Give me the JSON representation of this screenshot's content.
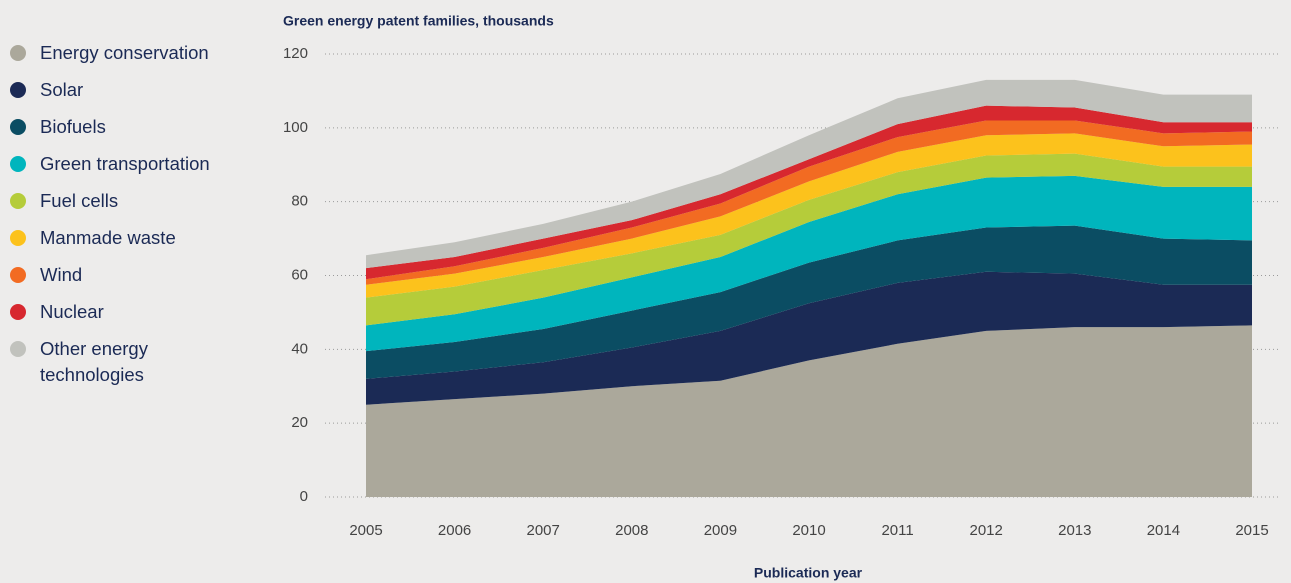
{
  "chart_data": {
    "type": "stacked-area",
    "title": "Green energy patent families, thousands",
    "x_label": "Publication year",
    "categories": [
      "2005",
      "2006",
      "2007",
      "2008",
      "2009",
      "2010",
      "2011",
      "2012",
      "2013",
      "2014",
      "2015"
    ],
    "ylim": [
      0,
      120
    ],
    "yticks": [
      0,
      20,
      40,
      60,
      80,
      100,
      120
    ],
    "grid": true,
    "series": [
      {
        "name": "Energy conservation",
        "color": "#aba89b",
        "values": [
          25,
          26.5,
          28,
          30,
          31.5,
          37,
          41.5,
          45,
          46,
          46,
          46.5
        ]
      },
      {
        "name": "Solar",
        "color": "#1b2a55",
        "values": [
          7,
          7.5,
          8.5,
          10.5,
          13.5,
          15.5,
          16.5,
          16,
          14.5,
          11.5,
          11
        ]
      },
      {
        "name": "Biofuels",
        "color": "#0b4d63",
        "values": [
          7.5,
          8,
          9,
          10,
          10.5,
          11,
          11.5,
          12,
          13,
          12.5,
          12
        ]
      },
      {
        "name": "Green transportation",
        "color": "#00b5bd",
        "values": [
          7,
          7.5,
          8.5,
          9,
          9.5,
          11,
          12.5,
          13.5,
          13.5,
          14,
          14.5
        ]
      },
      {
        "name": "Fuel cells",
        "color": "#b5cc3a",
        "values": [
          7.5,
          7.5,
          7.5,
          6.5,
          6,
          6,
          6,
          6,
          6,
          5.5,
          5.5
        ]
      },
      {
        "name": "Manmade waste",
        "color": "#fcc21c",
        "values": [
          3.5,
          3.5,
          3.5,
          4,
          5,
          5,
          5.5,
          5.5,
          5.5,
          5.5,
          6
        ]
      },
      {
        "name": "Wind",
        "color": "#f26b22",
        "values": [
          1.5,
          2,
          2.5,
          3,
          3.5,
          4,
          4,
          4,
          3.5,
          3.5,
          3.5
        ]
      },
      {
        "name": "Nuclear",
        "color": "#d7282f",
        "values": [
          3,
          2.5,
          2.5,
          2,
          2.5,
          2,
          3.5,
          4,
          3.5,
          3,
          2.5
        ]
      },
      {
        "name": "Other energy technologies",
        "color": "#c1c2bd",
        "values": [
          3.5,
          4,
          4,
          5,
          5.5,
          6.5,
          7,
          7,
          7.5,
          7.5,
          7.5
        ]
      }
    ]
  }
}
